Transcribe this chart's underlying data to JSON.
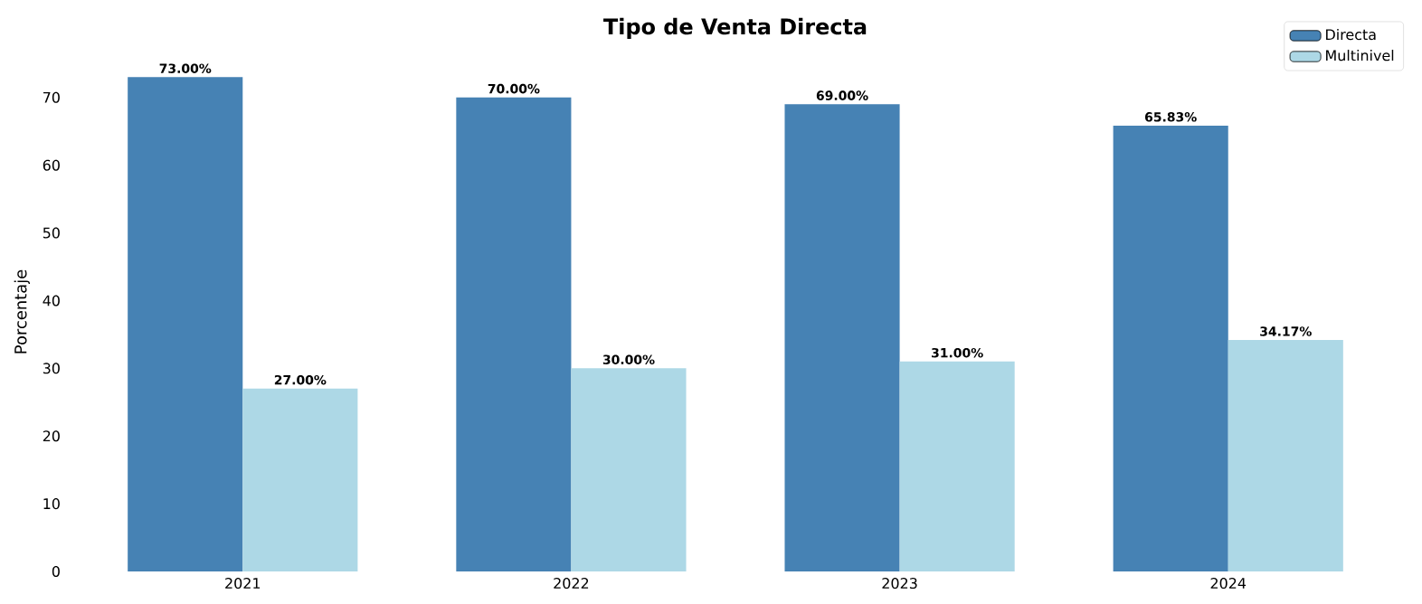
{
  "chart_data": {
    "type": "bar",
    "title": "Tipo de Venta Directa",
    "ylabel": "Porcentaje",
    "categories": [
      "2021",
      "2022",
      "2023",
      "2024"
    ],
    "series": [
      {
        "name": "Directa",
        "color": "#4682b4",
        "values": [
          73,
          70,
          69,
          65.83
        ],
        "value_labels": [
          "73.00%",
          "70.00%",
          "69.00%",
          "65.83%"
        ]
      },
      {
        "name": "Multinivel",
        "color": "#add8e6",
        "values": [
          27,
          30,
          31,
          34.17
        ],
        "value_labels": [
          "27.00%",
          "30.00%",
          "31.00%",
          "34.17%"
        ]
      }
    ],
    "ylim": [
      0,
      76.65
    ],
    "yticks": [
      0,
      10,
      20,
      30,
      40,
      50,
      60,
      70
    ],
    "legend": "top right"
  }
}
